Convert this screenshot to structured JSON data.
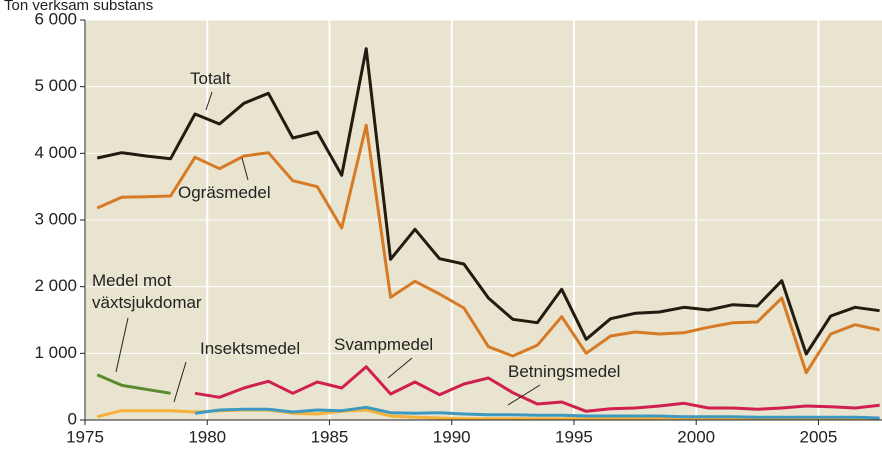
{
  "chart_data": {
    "type": "line",
    "title": "Ton verksam substans",
    "x": [
      1975.5,
      1976.5,
      1977.5,
      1978.5,
      1979.5,
      1980.5,
      1981.5,
      1982.5,
      1983.5,
      1984.5,
      1985.5,
      1986.5,
      1987.5,
      1988.5,
      1989.5,
      1990.5,
      1991.5,
      1992.5,
      1993.5,
      1994.5,
      1995.5,
      1996.5,
      1997.5,
      1998.5,
      1999.5,
      2000.5,
      2001.5,
      2002.5,
      2003.5,
      2004.5,
      2005.5,
      2006.5,
      2007.5
    ],
    "series": [
      {
        "name": "Totalt",
        "color": "#231a10",
        "values": [
          3930,
          4010,
          3960,
          3920,
          4590,
          4440,
          4750,
          4900,
          4230,
          4320,
          3670,
          5570,
          2410,
          2860,
          2420,
          2340,
          1830,
          1510,
          1460,
          1960,
          1210,
          1520,
          1600,
          1620,
          1690,
          1650,
          1730,
          1710,
          2090,
          990,
          1560,
          1690,
          1640
        ]
      },
      {
        "name": "Ogräsmedel",
        "color": "#d67a25",
        "values": [
          3180,
          3340,
          3350,
          3360,
          3940,
          3770,
          3960,
          4010,
          3590,
          3500,
          2880,
          4420,
          1840,
          2080,
          1890,
          1680,
          1100,
          960,
          1120,
          1550,
          1000,
          1260,
          1320,
          1290,
          1310,
          1390,
          1460,
          1470,
          1830,
          710,
          1290,
          1430,
          1350
        ]
      },
      {
        "name": "Medel mot växtsjukdomar",
        "color": "#5a8a2e",
        "values": [
          680,
          520,
          460,
          400,
          null,
          null,
          null,
          null,
          null,
          null,
          null,
          null,
          null,
          null,
          null,
          null,
          null,
          null,
          null,
          null,
          null,
          null,
          null,
          null,
          null,
          null,
          null,
          null,
          null,
          null,
          null,
          null,
          null
        ]
      },
      {
        "name": "Insektsmedel",
        "color": "#f5b13a",
        "values": [
          50,
          140,
          140,
          140,
          120,
          140,
          150,
          150,
          100,
          90,
          130,
          150,
          60,
          40,
          30,
          20,
          20,
          20,
          20,
          20,
          20,
          20,
          20,
          20,
          20,
          20,
          20,
          20,
          20,
          20,
          20,
          20,
          20
        ]
      },
      {
        "name": "Svampmedel",
        "color": "#d0204f",
        "values": [
          null,
          null,
          null,
          null,
          400,
          340,
          480,
          580,
          400,
          570,
          480,
          800,
          390,
          570,
          380,
          540,
          630,
          410,
          240,
          270,
          130,
          170,
          180,
          210,
          250,
          180,
          180,
          160,
          180,
          210,
          200,
          180,
          220
        ]
      },
      {
        "name": "Betningsmedel",
        "color": "#3d99c0",
        "values": [
          null,
          null,
          null,
          null,
          100,
          150,
          160,
          160,
          120,
          150,
          140,
          190,
          110,
          100,
          110,
          90,
          80,
          80,
          70,
          70,
          60,
          60,
          60,
          60,
          50,
          50,
          50,
          40,
          40,
          40,
          40,
          40,
          30
        ]
      }
    ],
    "xlim": [
      1975,
      2007.6
    ],
    "xticks": [
      1975,
      1980,
      1985,
      1990,
      1995,
      2000,
      2005
    ],
    "ylim": [
      0,
      6000
    ],
    "yticks": [
      0,
      {
        "value": 1000,
        "label": "1 000"
      },
      {
        "value": 2000,
        "label": "2 000"
      },
      {
        "value": 3000,
        "label": "3 000"
      },
      {
        "value": 4000,
        "label": "4 000"
      },
      {
        "value": 5000,
        "label": "5 000"
      },
      {
        "value": 6000,
        "label": "6 000"
      }
    ],
    "grid": true
  }
}
